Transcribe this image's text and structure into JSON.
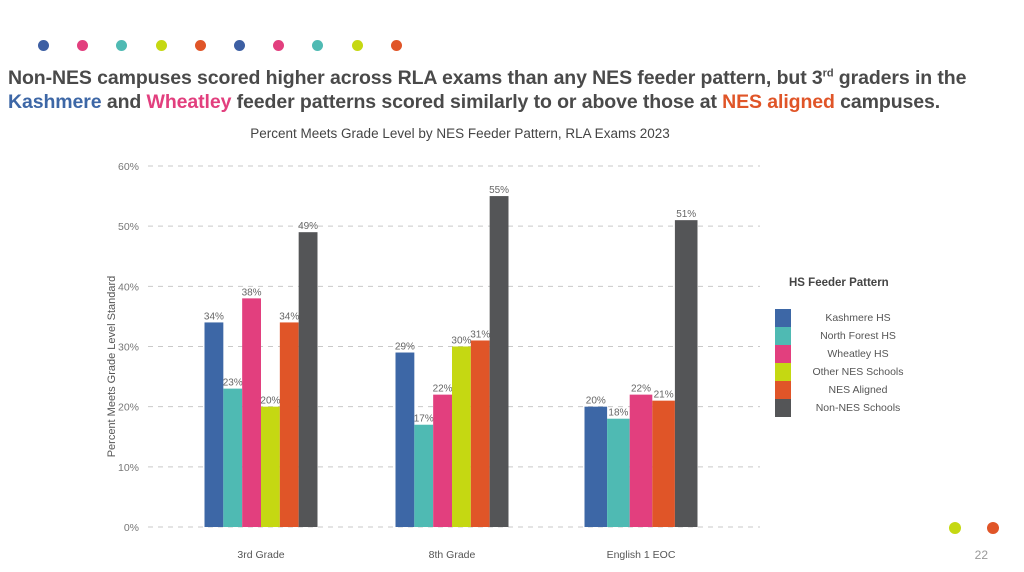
{
  "slide": {
    "headline_parts": {
      "line1": "Non-NES campuses scored higher across RLA exams than any NES feeder pattern, but 3",
      "sup": "rd",
      "line1_end": " graders in the",
      "kashmere": "Kashmere",
      "and": " and ",
      "wheatley": "Wheatley",
      "middle": " feeder patterns scored similarly to or above those at ",
      "nes_aligned": "NES aligned",
      "end": " campuses."
    },
    "page_number": "22",
    "decorative_dots": [
      "#3d5fa3",
      "#e23f7e",
      "#4fbab3",
      "#c5d812",
      "#e05528",
      "#3d5fa3",
      "#e23f7e",
      "#4fbab3",
      "#c5d812",
      "#e05528"
    ],
    "corner_dots": [
      "#c5d812",
      "#e05528"
    ]
  },
  "chart_data": {
    "type": "bar",
    "title": "Percent Meets Grade Level by NES Feeder Pattern, RLA Exams 2023",
    "xlabel": "",
    "ylabel": "Percent Meets Grade Level Standard",
    "ylim": [
      0,
      60
    ],
    "yticks": [
      0,
      10,
      20,
      30,
      40,
      50,
      60
    ],
    "ytick_labels": [
      "0%",
      "10%",
      "20%",
      "30%",
      "40%",
      "50%",
      "60%"
    ],
    "grid": "horizontal-dashed",
    "categories": [
      "3rd Grade",
      "8th Grade",
      "English 1 EOC"
    ],
    "legend_title": "HS Feeder Pattern",
    "legend_position": "right",
    "series": [
      {
        "name": "Kashmere HS",
        "color": "#3d67a6",
        "values": [
          34,
          29,
          20
        ]
      },
      {
        "name": "North Forest HS",
        "color": "#4fbab3",
        "values": [
          23,
          17,
          18
        ]
      },
      {
        "name": "Wheatley HS",
        "color": "#e23f7e",
        "values": [
          38,
          22,
          22
        ]
      },
      {
        "name": "Other NES Schools",
        "color": "#c5d812",
        "values": [
          20,
          30,
          null
        ]
      },
      {
        "name": "NES Aligned",
        "color": "#e05528",
        "values": [
          34,
          31,
          21
        ]
      },
      {
        "name": "Non-NES Schools",
        "color": "#545557",
        "values": [
          49,
          55,
          51
        ]
      }
    ],
    "value_label_suffix": "%"
  }
}
